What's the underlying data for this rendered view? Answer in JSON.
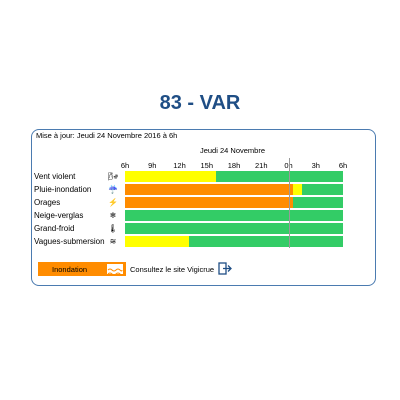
{
  "title": "83 - VAR",
  "updated": "Mise à jour: Jeudi 24 Novembre 2016 à 6h",
  "date_label": "Jeudi 24 Novembre",
  "ticks": [
    "6h",
    "9h",
    "12h",
    "15h",
    "18h",
    "21h",
    "0h",
    "3h",
    "6h"
  ],
  "colors": {
    "green": "#33cc66",
    "yellow": "#ffff00",
    "orange": "#ff8c00"
  },
  "rows": [
    {
      "label": "Vent violent",
      "icon": "wind-icon",
      "glyph": "🌬",
      "segments": [
        {
          "color": "yellow",
          "hours": 10
        },
        {
          "color": "green",
          "hours": 14
        }
      ]
    },
    {
      "label": "Pluie-inondation",
      "icon": "rain-icon",
      "glyph": "☔",
      "segments": [
        {
          "color": "orange",
          "hours": 18.5
        },
        {
          "color": "yellow",
          "hours": 1
        },
        {
          "color": "green",
          "hours": 4.5
        }
      ]
    },
    {
      "label": "Orages",
      "icon": "lightning-icon",
      "glyph": "⚡",
      "segments": [
        {
          "color": "orange",
          "hours": 18.5
        },
        {
          "color": "green",
          "hours": 5.5
        }
      ]
    },
    {
      "label": "Neige-verglas",
      "icon": "snowflake-icon",
      "glyph": "❄",
      "segments": [
        {
          "color": "green",
          "hours": 24
        }
      ]
    },
    {
      "label": "Grand-froid",
      "icon": "thermometer-icon",
      "glyph": "🌡",
      "segments": [
        {
          "color": "green",
          "hours": 24
        }
      ]
    },
    {
      "label": "Vagues-submersion",
      "icon": "waves-icon",
      "glyph": "≋",
      "segments": [
        {
          "color": "yellow",
          "hours": 7
        },
        {
          "color": "green",
          "hours": 17
        }
      ]
    }
  ],
  "legend": {
    "label": "Inondation",
    "icon": "flood-waves-icon",
    "color": "orange"
  },
  "vigicrue_link": "Consultez le site Vigicrue",
  "vigicrue_icon": "external-link-icon"
}
